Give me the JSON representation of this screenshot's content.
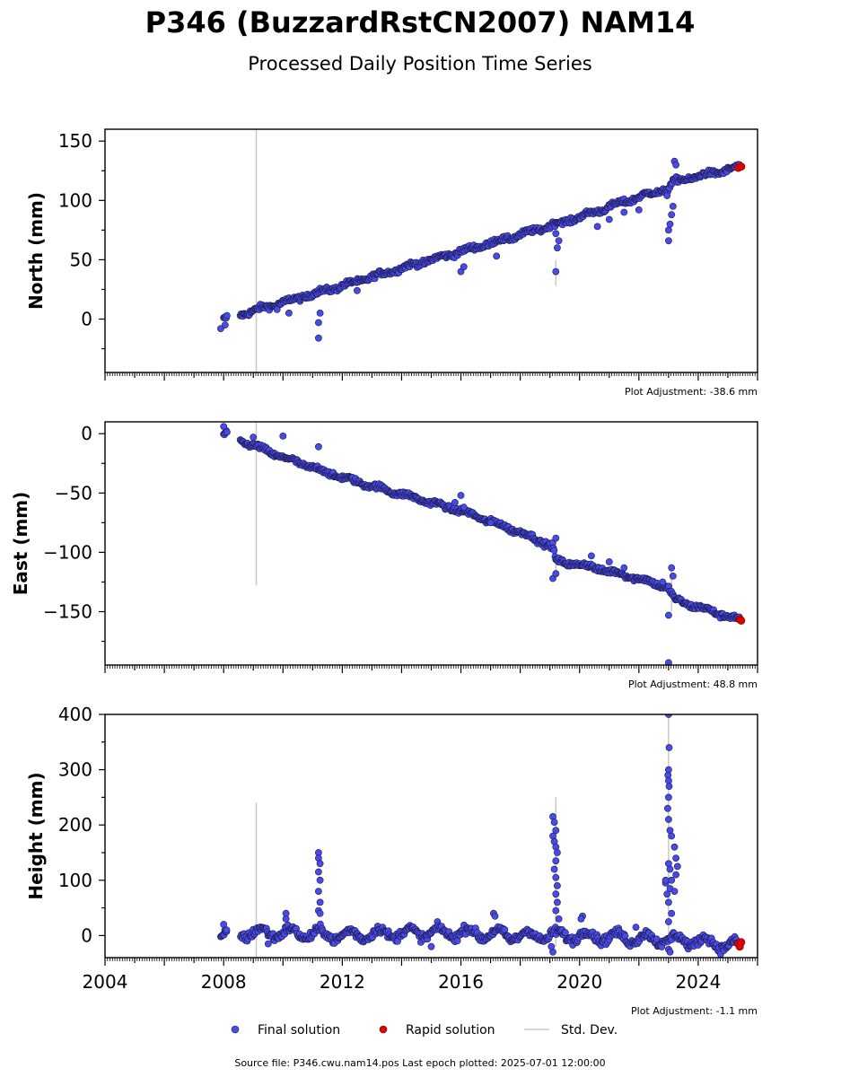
{
  "header": {
    "title": "P346 (BuzzardRstCN2007) NAM14",
    "subtitle": "Processed Daily Position Time Series"
  },
  "legend": {
    "final_label": "Final solution",
    "rapid_label": "Rapid solution",
    "std_label": "Std. Dev."
  },
  "footer": {
    "source": "Source file: P346.cwu.nam14.pos  Last epoch plotted: 2025-07-01 12:00:00"
  },
  "colors": {
    "final": "#4a4ae6",
    "final_edge": "#1a1a4a",
    "rapid": "#e00000",
    "stddev": "#c8c8c8"
  },
  "chart_data": [
    {
      "type": "scatter",
      "name": "north",
      "ylabel": "North (mm)",
      "adjustment": "Plot Adjustment: -38.6 mm",
      "xlim": [
        2004,
        2026
      ],
      "ylim": [
        -45,
        160
      ],
      "yticks": [
        0,
        50,
        100,
        150
      ],
      "trend": [
        [
          2008.0,
          0
        ],
        [
          2010,
          14
        ],
        [
          2012,
          28
        ],
        [
          2014,
          43
        ],
        [
          2016,
          57
        ],
        [
          2018,
          71
        ],
        [
          2020,
          86
        ],
        [
          2022,
          103
        ],
        [
          2023,
          110
        ],
        [
          2023.2,
          116
        ],
        [
          2025.4,
          128
        ]
      ],
      "outliers": [
        [
          2007.9,
          -8
        ],
        [
          2008.05,
          -5
        ],
        [
          2009.8,
          8
        ],
        [
          2010.2,
          5
        ],
        [
          2011.2,
          -16
        ],
        [
          2011.2,
          -3
        ],
        [
          2011.25,
          5
        ],
        [
          2012.5,
          24
        ],
        [
          2016.0,
          40
        ],
        [
          2016.1,
          44
        ],
        [
          2017.2,
          53
        ],
        [
          2019.2,
          40
        ],
        [
          2019.25,
          60
        ],
        [
          2019.3,
          66
        ],
        [
          2019.2,
          72
        ],
        [
          2020.6,
          78
        ],
        [
          2021.0,
          84
        ],
        [
          2021.5,
          90
        ],
        [
          2022.0,
          92
        ],
        [
          2023.0,
          66
        ],
        [
          2023.0,
          75
        ],
        [
          2023.05,
          80
        ],
        [
          2023.1,
          88
        ],
        [
          2023.15,
          95
        ],
        [
          2022.95,
          104
        ],
        [
          2023.2,
          133
        ],
        [
          2023.25,
          130
        ]
      ],
      "stddev_bars": [
        [
          2009.1,
          -45,
          160
        ],
        [
          2019.2,
          28,
          50
        ]
      ],
      "rapid": [
        [
          2025.35,
          127.5
        ],
        [
          2025.45,
          128.5
        ]
      ],
      "xticks": [
        2004,
        2008,
        2012,
        2016,
        2020,
        2024
      ],
      "show_xtick_labels": false
    },
    {
      "type": "scatter",
      "name": "east",
      "ylabel": "East (mm)",
      "adjustment": "Plot Adjustment: 48.8 mm",
      "xlim": [
        2004,
        2026
      ],
      "ylim": [
        -195,
        10
      ],
      "yticks": [
        0,
        -50,
        -100,
        -150
      ],
      "trend": [
        [
          2008.0,
          0
        ],
        [
          2010,
          -20
        ],
        [
          2012,
          -37
        ],
        [
          2014,
          -51
        ],
        [
          2016,
          -65
        ],
        [
          2018,
          -83
        ],
        [
          2019.1,
          -95
        ],
        [
          2019.2,
          -108
        ],
        [
          2020,
          -110
        ],
        [
          2022,
          -122
        ],
        [
          2023,
          -130
        ],
        [
          2023.2,
          -140
        ],
        [
          2025.4,
          -157
        ]
      ],
      "outliers": [
        [
          2008.0,
          6
        ],
        [
          2009.0,
          -3
        ],
        [
          2010.0,
          -2
        ],
        [
          2011.2,
          -11
        ],
        [
          2015.8,
          -58
        ],
        [
          2016.0,
          -52
        ],
        [
          2016.1,
          -62
        ],
        [
          2017.0,
          -75
        ],
        [
          2019.1,
          -122
        ],
        [
          2019.2,
          -118
        ],
        [
          2019.2,
          -88
        ],
        [
          2020.4,
          -103
        ],
        [
          2021.0,
          -108
        ],
        [
          2021.5,
          -113
        ],
        [
          2023.0,
          -153
        ],
        [
          2023.0,
          -193
        ],
        [
          2023.1,
          -113
        ],
        [
          2023.15,
          -120
        ],
        [
          2022.8,
          -125
        ]
      ],
      "stddev_bars": [
        [
          2009.1,
          -128,
          10
        ],
        [
          2019.2,
          -120,
          -85
        ],
        [
          2023.1,
          -150,
          -115
        ]
      ],
      "rapid": [
        [
          2025.4,
          -156.5
        ],
        [
          2025.45,
          -157.5
        ]
      ],
      "xticks": [
        2004,
        2008,
        2012,
        2016,
        2020,
        2024
      ],
      "show_xtick_labels": false
    },
    {
      "type": "scatter",
      "name": "height",
      "ylabel": "Height (mm)",
      "adjustment": "Plot Adjustment: -1.1 mm",
      "xlim": [
        2004,
        2026
      ],
      "ylim": [
        -40,
        400
      ],
      "yticks": [
        0,
        100,
        200,
        300,
        400
      ],
      "xticks": [
        2004,
        2008,
        2012,
        2016,
        2020,
        2024
      ],
      "tick_labels": [
        "2004",
        "2008",
        "2012",
        "2016",
        "2020",
        "2024"
      ],
      "show_xtick_labels": true,
      "trend": [
        [
          2007.9,
          0
        ],
        [
          2008.2,
          0
        ],
        [
          2008.6,
          5
        ],
        [
          2010,
          5
        ],
        [
          2012,
          0
        ],
        [
          2014,
          5
        ],
        [
          2016,
          5
        ],
        [
          2018,
          0
        ],
        [
          2020,
          0
        ],
        [
          2022,
          -5
        ],
        [
          2024,
          -10
        ],
        [
          2025.4,
          -20
        ]
      ],
      "outliers": [
        [
          2008.0,
          20
        ],
        [
          2008.1,
          10
        ],
        [
          2009.5,
          -15
        ],
        [
          2010.1,
          40
        ],
        [
          2010.1,
          30
        ],
        [
          2011.2,
          150
        ],
        [
          2011.2,
          140
        ],
        [
          2011.25,
          130
        ],
        [
          2011.2,
          115
        ],
        [
          2011.25,
          100
        ],
        [
          2011.2,
          80
        ],
        [
          2011.25,
          60
        ],
        [
          2011.2,
          45
        ],
        [
          2011.25,
          40
        ],
        [
          2015.0,
          -20
        ],
        [
          2017.1,
          40
        ],
        [
          2017.15,
          35
        ],
        [
          2019.1,
          215
        ],
        [
          2019.15,
          205
        ],
        [
          2019.2,
          190
        ],
        [
          2019.1,
          180
        ],
        [
          2019.15,
          170
        ],
        [
          2019.2,
          160
        ],
        [
          2019.25,
          150
        ],
        [
          2019.2,
          135
        ],
        [
          2019.15,
          120
        ],
        [
          2019.2,
          105
        ],
        [
          2019.25,
          90
        ],
        [
          2019.2,
          75
        ],
        [
          2019.25,
          60
        ],
        [
          2019.2,
          45
        ],
        [
          2019.3,
          30
        ],
        [
          2019.1,
          -30
        ],
        [
          2019.05,
          -20
        ],
        [
          2020.1,
          35
        ],
        [
          2020.05,
          30
        ],
        [
          2021.9,
          15
        ],
        [
          2022.9,
          95
        ],
        [
          2022.95,
          75
        ],
        [
          2023.0,
          400
        ],
        [
          2023.02,
          340
        ],
        [
          2023.0,
          300
        ],
        [
          2022.98,
          290
        ],
        [
          2023.0,
          280
        ],
        [
          2023.02,
          270
        ],
        [
          2023.0,
          250
        ],
        [
          2022.97,
          230
        ],
        [
          2023.0,
          210
        ],
        [
          2023.05,
          190
        ],
        [
          2023.1,
          180
        ],
        [
          2023.0,
          130
        ],
        [
          2023.05,
          120
        ],
        [
          2023.1,
          100
        ],
        [
          2023.05,
          85
        ],
        [
          2023.0,
          60
        ],
        [
          2023.1,
          40
        ],
        [
          2023.0,
          25
        ],
        [
          2023.2,
          160
        ],
        [
          2023.25,
          140
        ],
        [
          2023.3,
          125
        ],
        [
          2023.25,
          110
        ],
        [
          2023.2,
          80
        ],
        [
          2022.9,
          100
        ],
        [
          2023.0,
          -25
        ],
        [
          2023.05,
          -30
        ]
      ],
      "stddev_bars": [
        [
          2009.1,
          -40,
          240
        ],
        [
          2019.2,
          -20,
          250
        ],
        [
          2023.0,
          -30,
          420
        ]
      ],
      "rapid": [
        [
          2025.35,
          -15
        ],
        [
          2025.4,
          -20
        ],
        [
          2025.45,
          -12
        ]
      ]
    }
  ]
}
